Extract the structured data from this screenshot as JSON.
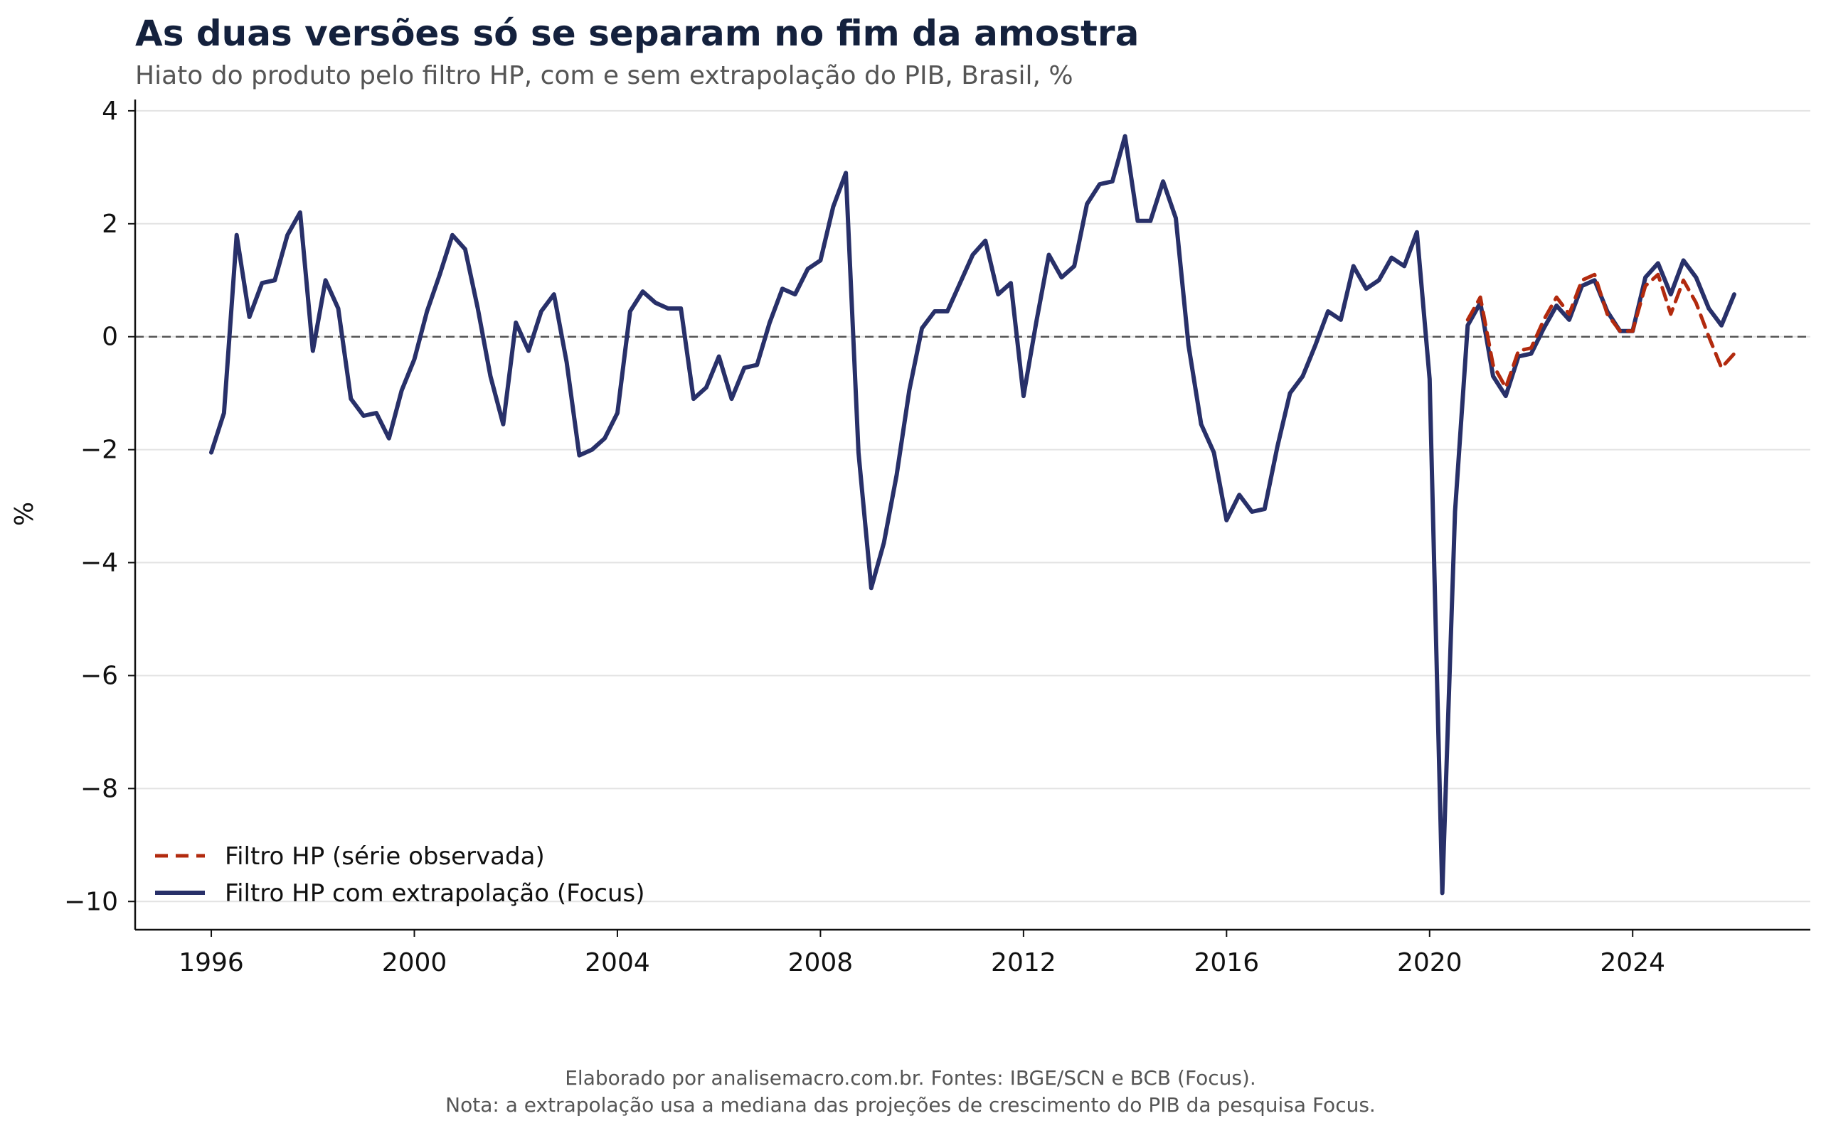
{
  "title": "As duas versões só se separam no fim da amostra",
  "subtitle": "Hiato do produto pelo filtro HP, com e sem extrapolação do PIB, Brasil, %",
  "footer": {
    "line1": "Elaborado por analisemacro.com.br. Fontes: IBGE/SCN e BCB (Focus).",
    "line2": "Nota: a extrapolação usa a mediana das projeções de crescimento do PIB da pesquisa Focus."
  },
  "colors": {
    "observed": "#b22a0e",
    "focus": "#283069",
    "grid": "#e3e3e3",
    "zero_line": "#555555",
    "axis": "#111111"
  },
  "chart_data": {
    "type": "line",
    "title": "As duas versões só se separam no fim da amostra",
    "subtitle": "Hiato do produto pelo filtro HP, com e sem extrapolação do PIB, Brasil, %",
    "xlabel": "",
    "ylabel": "%",
    "xlim": [
      1994.5,
      2027.5
    ],
    "ylim": [
      -10.5,
      4.2
    ],
    "x_ticks": [
      1996,
      2000,
      2004,
      2008,
      2012,
      2016,
      2020,
      2024
    ],
    "y_ticks": [
      4,
      2,
      0,
      -2,
      -4,
      -6,
      -8,
      -10
    ],
    "y_tick_labels": [
      "4",
      "2",
      "0",
      "−2",
      "−4",
      "−6",
      "−8",
      "−10"
    ],
    "grid": "horizontal",
    "reference_line": 0,
    "legend_position": "lower-left",
    "x_start": 1996.0,
    "x_step": 0.25,
    "series": [
      {
        "name": "Filtro HP (série observada)",
        "style": "dashed",
        "color": "#b22a0e",
        "x_start": 2020.75,
        "values": [
          0.3,
          0.7,
          -0.5,
          -0.9,
          -0.25,
          -0.2,
          0.3,
          0.7,
          0.4,
          1.0,
          1.1,
          0.4,
          0.1,
          0.1,
          0.9,
          1.1,
          0.4,
          1.0,
          0.6,
          0.0,
          -0.55,
          -0.3
        ]
      },
      {
        "name": "Filtro HP com extrapolação (Focus)",
        "style": "solid",
        "color": "#283069",
        "x_start": 1996.0,
        "values": [
          -2.05,
          -1.35,
          1.8,
          0.35,
          0.95,
          1.0,
          1.8,
          2.2,
          -0.25,
          1.0,
          0.5,
          -1.1,
          -1.4,
          -1.35,
          -1.8,
          -0.95,
          -0.4,
          0.45,
          1.1,
          1.8,
          1.55,
          0.5,
          -0.7,
          -1.55,
          0.25,
          -0.25,
          0.45,
          0.75,
          -0.45,
          -2.1,
          -2.0,
          -1.8,
          -1.35,
          0.45,
          0.8,
          0.6,
          0.5,
          0.5,
          -1.1,
          -0.9,
          -0.35,
          -1.1,
          -0.55,
          -0.5,
          0.25,
          0.85,
          0.75,
          1.2,
          1.35,
          2.3,
          2.9,
          -2.05,
          -4.45,
          -3.65,
          -2.45,
          -0.95,
          0.15,
          0.45,
          0.45,
          0.95,
          1.45,
          1.7,
          0.75,
          0.95,
          -1.05,
          0.25,
          1.45,
          1.05,
          1.25,
          2.35,
          2.7,
          2.75,
          3.55,
          2.05,
          2.05,
          2.75,
          2.1,
          -0.15,
          -1.55,
          -2.05,
          -3.25,
          -2.8,
          -3.1,
          -3.05,
          -1.95,
          -1.0,
          -0.7,
          -0.15,
          0.45,
          0.3,
          1.25,
          0.85,
          1.0,
          1.4,
          1.25,
          1.85,
          -0.75,
          -9.85,
          -3.1,
          0.2,
          0.6,
          -0.7,
          -1.05,
          -0.35,
          -0.3,
          0.15,
          0.55,
          0.3,
          0.9,
          1.0,
          0.45,
          0.1,
          0.1,
          1.05,
          1.3,
          0.75,
          1.35,
          1.05,
          0.5,
          0.2,
          0.75
        ]
      }
    ]
  }
}
